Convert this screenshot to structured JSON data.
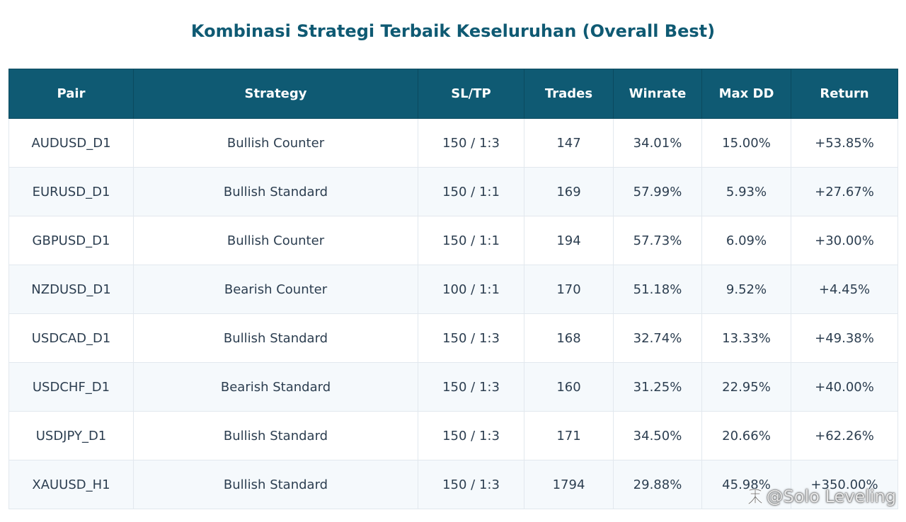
{
  "title": "Kombinasi Strategi Terbaik Keseluruhan (Overall Best)",
  "table": {
    "headers": [
      "Pair",
      "Strategy",
      "SL/TP",
      "Trades",
      "Winrate",
      "Max DD",
      "Return"
    ],
    "rows": [
      [
        "AUDUSD_D1",
        "Bullish Counter",
        "150 / 1:3",
        "147",
        "34.01%",
        "15.00%",
        "+53.85%"
      ],
      [
        "EURUSD_D1",
        "Bullish Standard",
        "150 / 1:1",
        "169",
        "57.99%",
        "5.93%",
        "+27.67%"
      ],
      [
        "GBPUSD_D1",
        "Bullish Counter",
        "150 / 1:1",
        "194",
        "57.73%",
        "6.09%",
        "+30.00%"
      ],
      [
        "NZDUSD_D1",
        "Bearish Counter",
        "100 / 1:1",
        "170",
        "51.18%",
        "9.52%",
        "+4.45%"
      ],
      [
        "USDCAD_D1",
        "Bullish Standard",
        "150 / 1:3",
        "168",
        "32.74%",
        "13.33%",
        "+49.38%"
      ],
      [
        "USDCHF_D1",
        "Bearish Standard",
        "150 / 1:3",
        "160",
        "31.25%",
        "22.95%",
        "+40.00%"
      ],
      [
        "USDJPY_D1",
        "Bullish Standard",
        "150 / 1:3",
        "171",
        "34.50%",
        "20.66%",
        "+62.26%"
      ],
      [
        "XAUUSD_H1",
        "Bullish Standard",
        "150 / 1:3",
        "1794",
        "29.88%",
        "45.98%",
        "+350.00%"
      ]
    ]
  },
  "watermark": {
    "text": "@Solo Leveling",
    "icon": "zhihu-logo-icon"
  }
}
